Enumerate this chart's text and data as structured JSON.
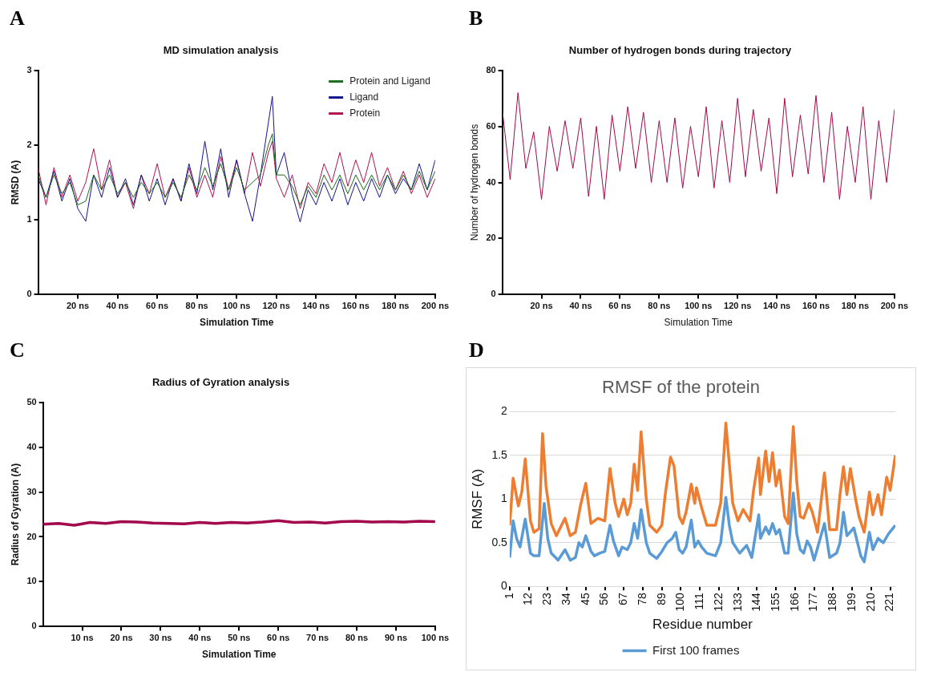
{
  "chart_data": [
    {
      "type": "line",
      "title": "MD simulation analysis",
      "xlabel": "Simulation Time",
      "ylabel": "RMSD (A)",
      "annotations": [
        "A"
      ],
      "xlim": [
        0,
        200
      ],
      "xticks": [
        {
          "value": 20,
          "label": "20 ns"
        },
        {
          "value": 40,
          "label": "40 ns"
        },
        {
          "value": 60,
          "label": "60 ns"
        },
        {
          "value": 80,
          "label": "80 ns"
        },
        {
          "value": 100,
          "label": "100 ns"
        },
        {
          "value": 120,
          "label": "120 ns"
        },
        {
          "value": 140,
          "label": "140 ns"
        },
        {
          "value": 160,
          "label": "160 ns"
        },
        {
          "value": 180,
          "label": "180 ns"
        },
        {
          "value": 200,
          "label": "200 ns"
        }
      ],
      "ylim": [
        0,
        3
      ],
      "yticks": [
        0,
        1,
        2,
        3
      ],
      "grid": false,
      "legend": "top right",
      "x": [
        0,
        4,
        8,
        12,
        16,
        20,
        24,
        28,
        32,
        36,
        40,
        44,
        48,
        52,
        56,
        60,
        64,
        68,
        72,
        76,
        80,
        84,
        88,
        92,
        96,
        100,
        104,
        108,
        112,
        116,
        118,
        120,
        124,
        128,
        132,
        136,
        140,
        144,
        148,
        152,
        156,
        160,
        164,
        168,
        172,
        176,
        180,
        184,
        188,
        192,
        196,
        200
      ],
      "series": [
        {
          "name": "Protein and Ligand",
          "color": "#1a6b1a",
          "values": [
            1.6,
            1.3,
            1.6,
            1.35,
            1.5,
            1.2,
            1.25,
            1.6,
            1.4,
            1.6,
            1.35,
            1.5,
            1.3,
            1.5,
            1.35,
            1.5,
            1.3,
            1.5,
            1.3,
            1.6,
            1.4,
            1.7,
            1.45,
            1.75,
            1.4,
            1.7,
            1.4,
            1.5,
            1.6,
            2.0,
            2.15,
            1.6,
            1.6,
            1.45,
            1.2,
            1.45,
            1.3,
            1.6,
            1.4,
            1.6,
            1.35,
            1.6,
            1.4,
            1.6,
            1.4,
            1.6,
            1.4,
            1.6,
            1.4,
            1.65,
            1.4,
            1.65
          ]
        },
        {
          "name": "Ligand",
          "color": "#14148c",
          "values": [
            1.55,
            1.3,
            1.65,
            1.25,
            1.55,
            1.15,
            0.98,
            1.6,
            1.3,
            1.7,
            1.3,
            1.55,
            1.2,
            1.6,
            1.25,
            1.55,
            1.2,
            1.55,
            1.25,
            1.75,
            1.35,
            2.05,
            1.4,
            1.95,
            1.3,
            1.8,
            1.35,
            0.98,
            1.6,
            2.3,
            2.65,
            1.6,
            1.9,
            1.35,
            0.97,
            1.4,
            1.2,
            1.5,
            1.25,
            1.55,
            1.2,
            1.5,
            1.25,
            1.55,
            1.3,
            1.6,
            1.35,
            1.55,
            1.4,
            1.75,
            1.4,
            1.8
          ]
        },
        {
          "name": "Protein",
          "color": "#b0114f",
          "values": [
            1.7,
            1.2,
            1.7,
            1.3,
            1.6,
            1.25,
            1.5,
            1.95,
            1.4,
            1.8,
            1.3,
            1.5,
            1.15,
            1.6,
            1.35,
            1.75,
            1.3,
            1.55,
            1.25,
            1.7,
            1.3,
            1.6,
            1.3,
            1.85,
            1.4,
            1.8,
            1.35,
            1.9,
            1.45,
            1.9,
            2.05,
            1.55,
            1.3,
            1.6,
            1.15,
            1.5,
            1.35,
            1.75,
            1.5,
            1.9,
            1.45,
            1.8,
            1.5,
            1.9,
            1.45,
            1.7,
            1.4,
            1.65,
            1.35,
            1.6,
            1.3,
            1.55
          ]
        }
      ]
    },
    {
      "type": "line",
      "title": "Number of hydrogen bonds during trajectory",
      "xlabel": "Simulation Time",
      "ylabel": "Number of hydrogen bonds",
      "annotations": [
        "B"
      ],
      "xlim": [
        0,
        200
      ],
      "xticks": [
        {
          "value": 20,
          "label": "20 ns"
        },
        {
          "value": 40,
          "label": "40 ns"
        },
        {
          "value": 60,
          "label": "60 ns"
        },
        {
          "value": 80,
          "label": "80 ns"
        },
        {
          "value": 100,
          "label": "100 ns"
        },
        {
          "value": 120,
          "label": "120 ns"
        },
        {
          "value": 140,
          "label": "140 ns"
        },
        {
          "value": 160,
          "label": "160 ns"
        },
        {
          "value": 180,
          "label": "180 ns"
        },
        {
          "value": 200,
          "label": "200 ns"
        }
      ],
      "ylim": [
        0,
        80
      ],
      "yticks": [
        0,
        20,
        40,
        60,
        80
      ],
      "grid": false,
      "x": [
        0,
        4,
        8,
        12,
        16,
        20,
        24,
        28,
        32,
        36,
        40,
        44,
        48,
        52,
        56,
        60,
        64,
        68,
        72,
        76,
        80,
        84,
        88,
        92,
        96,
        100,
        104,
        108,
        112,
        116,
        120,
        124,
        128,
        132,
        136,
        140,
        144,
        148,
        152,
        156,
        160,
        164,
        168,
        172,
        176,
        180,
        184,
        188,
        192,
        196,
        200
      ],
      "series": [
        {
          "color": "#a3084c",
          "values": [
            66,
            41,
            72,
            45,
            58,
            34,
            60,
            44,
            62,
            45,
            63,
            35,
            60,
            34,
            64,
            44,
            67,
            45,
            65,
            40,
            62,
            40,
            63,
            38,
            60,
            42,
            67,
            38,
            62,
            40,
            70,
            42,
            66,
            44,
            63,
            36,
            70,
            42,
            64,
            43,
            71,
            40,
            65,
            34,
            60,
            40,
            67,
            34,
            62,
            40,
            66
          ]
        }
      ]
    },
    {
      "type": "line",
      "title": "Radius of Gyration analysis",
      "xlabel": "Simulation Time",
      "ylabel": "Radius of Gyration (A)",
      "annotations": [
        "C"
      ],
      "xlim": [
        0,
        100
      ],
      "xticks": [
        {
          "value": 10,
          "label": "10 ns"
        },
        {
          "value": 20,
          "label": "20 ns"
        },
        {
          "value": 30,
          "label": "30 ns"
        },
        {
          "value": 40,
          "label": "40 ns"
        },
        {
          "value": 50,
          "label": "50 ns"
        },
        {
          "value": 60,
          "label": "60 ns"
        },
        {
          "value": 70,
          "label": "70 ns"
        },
        {
          "value": 80,
          "label": "80 ns"
        },
        {
          "value": 90,
          "label": "90 ns"
        },
        {
          "value": 100,
          "label": "100 ns"
        }
      ],
      "ylim": [
        0,
        50
      ],
      "yticks": [
        0,
        10,
        20,
        30,
        40,
        50
      ],
      "grid": false,
      "x": [
        0,
        4,
        8,
        12,
        16,
        20,
        24,
        28,
        32,
        36,
        40,
        44,
        48,
        52,
        56,
        60,
        64,
        68,
        72,
        76,
        80,
        84,
        88,
        92,
        96,
        100
      ],
      "series": [
        {
          "color": "#a3084c",
          "values": [
            22.8,
            23.0,
            22.6,
            23.2,
            23.0,
            23.4,
            23.3,
            23.1,
            23.0,
            22.9,
            23.2,
            23.0,
            23.2,
            23.1,
            23.3,
            23.6,
            23.2,
            23.3,
            23.1,
            23.4,
            23.5,
            23.3,
            23.4,
            23.3,
            23.5,
            23.4
          ]
        }
      ]
    },
    {
      "type": "line",
      "title": "RMSF of the protein",
      "xlabel": "Residue number",
      "ylabel": "RMSF (A)",
      "annotations": [
        "D"
      ],
      "xlim": [
        1,
        224
      ],
      "xticks": [
        1,
        12,
        23,
        34,
        45,
        56,
        67,
        78,
        89,
        100,
        111,
        122,
        133,
        144,
        155,
        166,
        177,
        188,
        199,
        210,
        221
      ],
      "ylim": [
        0,
        2
      ],
      "yticks": [
        0,
        0.5,
        1,
        1.5,
        2
      ],
      "grid": "y",
      "legend": "bottom",
      "series": [
        {
          "color": "#ed7d31",
          "x": [
            1,
            3,
            6,
            8,
            10,
            13,
            15,
            18,
            20,
            22,
            25,
            28,
            33,
            36,
            39,
            42,
            45,
            48,
            52,
            56,
            59,
            62,
            64,
            67,
            69,
            71,
            73,
            75,
            77,
            80,
            82,
            86,
            89,
            91,
            94,
            96,
            99,
            101,
            103,
            106,
            108,
            109,
            112,
            115,
            120,
            123,
            126,
            128,
            130,
            133,
            136,
            140,
            142,
            145,
            146,
            149,
            151,
            153,
            155,
            157,
            160,
            162,
            165,
            167,
            169,
            171,
            174,
            176,
            179,
            183,
            186,
            190,
            192,
            194,
            196,
            198,
            201,
            203,
            206,
            209,
            211,
            214,
            216,
            219,
            221,
            224
          ],
          "values": [
            0.7,
            1.24,
            0.92,
            1.08,
            1.46,
            0.75,
            0.62,
            0.66,
            1.75,
            1.15,
            0.72,
            0.58,
            0.78,
            0.58,
            0.62,
            0.93,
            1.18,
            0.72,
            0.78,
            0.75,
            1.35,
            0.95,
            0.8,
            1.0,
            0.82,
            0.95,
            1.4,
            1.1,
            1.77,
            1.0,
            0.7,
            0.62,
            0.7,
            1.06,
            1.48,
            1.38,
            0.8,
            0.72,
            0.85,
            1.17,
            0.95,
            1.13,
            0.9,
            0.7,
            0.7,
            0.95,
            1.87,
            1.4,
            0.95,
            0.75,
            0.88,
            0.75,
            1.1,
            1.47,
            1.05,
            1.55,
            1.2,
            1.53,
            1.15,
            1.33,
            0.8,
            0.72,
            1.83,
            1.2,
            0.8,
            0.78,
            0.95,
            0.85,
            0.62,
            1.3,
            0.65,
            0.65,
            1.05,
            1.37,
            1.05,
            1.35,
            1.0,
            0.8,
            0.62,
            1.08,
            0.82,
            1.05,
            0.82,
            1.25,
            1.1,
            1.5
          ]
        },
        {
          "name": "First 100 frames",
          "color": "#5b9bd5",
          "x": [
            1,
            3,
            5,
            7,
            10,
            13,
            15,
            18,
            21,
            23,
            25,
            29,
            33,
            36,
            39,
            41,
            43,
            45,
            48,
            50,
            53,
            56,
            59,
            61,
            64,
            66,
            69,
            71,
            73,
            75,
            77,
            80,
            82,
            86,
            89,
            92,
            95,
            97,
            99,
            101,
            103,
            106,
            108,
            110,
            112,
            115,
            120,
            123,
            126,
            128,
            130,
            134,
            138,
            141,
            145,
            146,
            149,
            151,
            153,
            155,
            157,
            160,
            162,
            165,
            167,
            169,
            171,
            173,
            175,
            177,
            183,
            186,
            190,
            192,
            194,
            196,
            200,
            204,
            206,
            209,
            211,
            214,
            217,
            220,
            224
          ],
          "values": [
            0.33,
            0.75,
            0.55,
            0.45,
            0.77,
            0.38,
            0.35,
            0.35,
            0.95,
            0.55,
            0.38,
            0.3,
            0.42,
            0.3,
            0.33,
            0.5,
            0.45,
            0.58,
            0.4,
            0.35,
            0.38,
            0.4,
            0.7,
            0.52,
            0.35,
            0.45,
            0.42,
            0.5,
            0.72,
            0.55,
            0.88,
            0.5,
            0.38,
            0.32,
            0.4,
            0.5,
            0.55,
            0.62,
            0.42,
            0.38,
            0.45,
            0.76,
            0.45,
            0.52,
            0.45,
            0.38,
            0.35,
            0.5,
            1.02,
            0.7,
            0.5,
            0.38,
            0.47,
            0.33,
            0.82,
            0.55,
            0.68,
            0.6,
            0.72,
            0.6,
            0.65,
            0.38,
            0.38,
            1.07,
            0.6,
            0.42,
            0.38,
            0.52,
            0.45,
            0.3,
            0.72,
            0.33,
            0.38,
            0.5,
            0.85,
            0.58,
            0.67,
            0.35,
            0.28,
            0.62,
            0.42,
            0.55,
            0.5,
            0.6,
            0.7
          ]
        }
      ]
    }
  ]
}
